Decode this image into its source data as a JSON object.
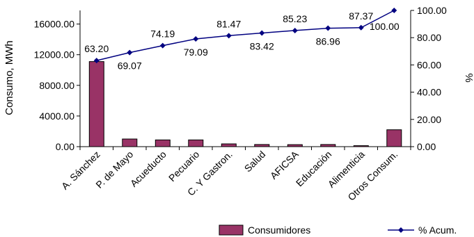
{
  "chart_data": {
    "type": "bar+line",
    "categories": [
      "A. Sánchez",
      "P. de Mayo",
      "Acueducto",
      "Pecuario",
      "C.  Y Gastron.",
      "Salud",
      "AFICSA",
      "Educación",
      "Alimenticia",
      "Otros Consum."
    ],
    "series": [
      {
        "name": "Consumidores",
        "type": "bar",
        "axis": "left",
        "values": [
          11100,
          1000,
          880,
          880,
          360,
          280,
          260,
          280,
          130,
          2200
        ]
      },
      {
        "name": "% Acum.",
        "type": "line",
        "axis": "right",
        "values": [
          63.2,
          69.07,
          74.19,
          79.09,
          81.47,
          83.42,
          85.23,
          86.96,
          87.37,
          100.0
        ],
        "labels": [
          "63.20",
          "69.07",
          "74.19",
          "79.09",
          "81.47",
          "83.42",
          "85.23",
          "86.96",
          "87.37",
          "100.00"
        ]
      }
    ],
    "ylabel": "Consumo, MWh",
    "y2label": "%",
    "ylim": [
      0,
      17777.78
    ],
    "y2lim": [
      0,
      100
    ],
    "yticks": [
      "0.00",
      "4000.00",
      "8000.00",
      "12000.00",
      "16000.00"
    ],
    "y2ticks": [
      "0.00",
      "20.00",
      "40.00",
      "60.00",
      "80.00",
      "100.00"
    ],
    "grid": false,
    "legend": "bottom",
    "colors": {
      "bar": "#993366",
      "line": "#000080"
    }
  }
}
